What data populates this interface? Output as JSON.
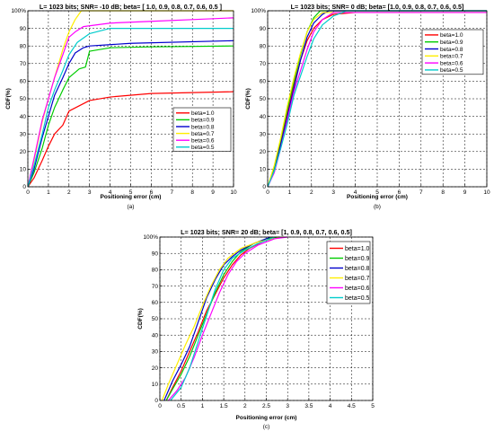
{
  "chart_data": [
    {
      "type": "line",
      "title": "L= 1023  bits;  SNR= -10 dB;  beta= [ 1.0,   0.9,   0.8,   0.7,   0.6,   0.5  ]",
      "xlabel": "Positioning error (cm)",
      "ylabel": "CDF(%)",
      "caption": "(a)",
      "xlim": [
        0,
        10
      ],
      "ylim": [
        0,
        100
      ],
      "xticks": [
        "0",
        "1",
        "2",
        "3",
        "4",
        "5",
        "6",
        "7",
        "8",
        "9",
        "10"
      ],
      "yticks": [
        "0",
        "10",
        "20",
        "30",
        "40",
        "50",
        "60",
        "70",
        "80",
        "90",
        "100%"
      ],
      "grid": true,
      "legend_position": "right-middle",
      "series": [
        {
          "name": "beta=1.0",
          "color": "#ff0000",
          "points": [
            [
              0,
              0
            ],
            [
              0.3,
              5
            ],
            [
              0.7,
              15
            ],
            [
              1.0,
              23
            ],
            [
              1.3,
              30
            ],
            [
              1.7,
              35
            ],
            [
              2.0,
              43
            ],
            [
              2.5,
              46
            ],
            [
              3,
              49
            ],
            [
              4,
              51
            ],
            [
              6,
              53
            ],
            [
              8,
              53.5
            ],
            [
              10,
              54
            ]
          ]
        },
        {
          "name": "beta=0.9",
          "color": "#00cc00",
          "points": [
            [
              0,
              0
            ],
            [
              0.3,
              8
            ],
            [
              0.7,
              22
            ],
            [
              1.0,
              35
            ],
            [
              1.3,
              45
            ],
            [
              1.7,
              55
            ],
            [
              2.0,
              62
            ],
            [
              2.5,
              67
            ],
            [
              2.8,
              68
            ],
            [
              3.0,
              77
            ],
            [
              4,
              79
            ],
            [
              6,
              79.5
            ],
            [
              10,
              80
            ]
          ]
        },
        {
          "name": "beta=0.8",
          "color": "#0000cc",
          "points": [
            [
              0,
              0
            ],
            [
              0.3,
              10
            ],
            [
              0.7,
              28
            ],
            [
              1.0,
              40
            ],
            [
              1.3,
              52
            ],
            [
              1.7,
              62
            ],
            [
              2.0,
              70
            ],
            [
              2.3,
              76
            ],
            [
              2.7,
              79
            ],
            [
              3.0,
              80
            ],
            [
              5,
              81.5
            ],
            [
              10,
              83
            ]
          ]
        },
        {
          "name": "beta=0.7",
          "color": "#ffee00",
          "points": [
            [
              0,
              0
            ],
            [
              0.3,
              15
            ],
            [
              0.7,
              37
            ],
            [
              1.0,
              50
            ],
            [
              1.3,
              62
            ],
            [
              1.7,
              78
            ],
            [
              2.0,
              88
            ],
            [
              2.3,
              95
            ],
            [
              2.6,
              100
            ],
            [
              10,
              100
            ]
          ]
        },
        {
          "name": "beta=0.6",
          "color": "#ff00ff",
          "points": [
            [
              0,
              0
            ],
            [
              0.3,
              16
            ],
            [
              0.7,
              38
            ],
            [
              1.0,
              50
            ],
            [
              1.3,
              62
            ],
            [
              1.7,
              75
            ],
            [
              2.0,
              85
            ],
            [
              2.3,
              88
            ],
            [
              2.7,
              91
            ],
            [
              4,
              93
            ],
            [
              6,
              94
            ],
            [
              8,
              95
            ],
            [
              10,
              96
            ]
          ]
        },
        {
          "name": "beta=0.5",
          "color": "#00cccc",
          "points": [
            [
              0,
              0
            ],
            [
              0.3,
              12
            ],
            [
              0.7,
              30
            ],
            [
              1.0,
              45
            ],
            [
              1.3,
              55
            ],
            [
              1.7,
              66
            ],
            [
              2.0,
              75
            ],
            [
              2.4,
              82
            ],
            [
              3.0,
              87
            ],
            [
              4,
              90
            ],
            [
              10,
              90
            ]
          ]
        }
      ]
    },
    {
      "type": "line",
      "title": "L= 1023  bits;  SNR= 0 dB;  beta= [1.0,   0.9,   0.8,   0.7,   0.6,   0.5]",
      "xlabel": "Positioning error (cm)",
      "ylabel": "CDF(%)",
      "caption": "(b)",
      "xlim": [
        0,
        10
      ],
      "ylim": [
        0,
        100
      ],
      "xticks": [
        "0",
        "1",
        "2",
        "3",
        "4",
        "5",
        "6",
        "7",
        "8",
        "9",
        "10"
      ],
      "yticks": [
        "0",
        "10",
        "20",
        "30",
        "40",
        "50",
        "60",
        "70",
        "80",
        "90",
        "100%"
      ],
      "grid": true,
      "legend_position": "top-right",
      "series": [
        {
          "name": "beta=1.0",
          "color": "#ff0000",
          "points": [
            [
              0,
              0
            ],
            [
              0.3,
              10
            ],
            [
              0.6,
              25
            ],
            [
              0.9,
              42
            ],
            [
              1.2,
              58
            ],
            [
              1.5,
              72
            ],
            [
              1.8,
              83
            ],
            [
              2.1,
              90
            ],
            [
              2.5,
              95
            ],
            [
              3,
              98
            ],
            [
              4,
              99
            ],
            [
              10,
              99
            ]
          ]
        },
        {
          "name": "beta=0.9",
          "color": "#00cc00",
          "points": [
            [
              0,
              0
            ],
            [
              0.3,
              11
            ],
            [
              0.6,
              27
            ],
            [
              0.9,
              44
            ],
            [
              1.2,
              60
            ],
            [
              1.5,
              75
            ],
            [
              1.8,
              88
            ],
            [
              2.1,
              96
            ],
            [
              2.4,
              100
            ],
            [
              10,
              100
            ]
          ]
        },
        {
          "name": "beta=0.8",
          "color": "#0000cc",
          "points": [
            [
              0,
              0
            ],
            [
              0.3,
              9
            ],
            [
              0.6,
              24
            ],
            [
              0.9,
              40
            ],
            [
              1.2,
              56
            ],
            [
              1.5,
              72
            ],
            [
              1.8,
              85
            ],
            [
              2.1,
              93
            ],
            [
              2.5,
              98
            ],
            [
              2.8,
              100
            ],
            [
              10,
              100
            ]
          ]
        },
        {
          "name": "beta=0.7",
          "color": "#ffee00",
          "points": [
            [
              0,
              0
            ],
            [
              0.3,
              12
            ],
            [
              0.6,
              28
            ],
            [
              0.9,
              46
            ],
            [
              1.2,
              62
            ],
            [
              1.5,
              76
            ],
            [
              1.8,
              88
            ],
            [
              2.1,
              95
            ],
            [
              2.5,
              99
            ],
            [
              10,
              99
            ]
          ]
        },
        {
          "name": "beta=0.6",
          "color": "#ff00ff",
          "points": [
            [
              0,
              0
            ],
            [
              0.3,
              8
            ],
            [
              0.6,
              22
            ],
            [
              0.9,
              38
            ],
            [
              1.2,
              54
            ],
            [
              1.5,
              66
            ],
            [
              1.8,
              78
            ],
            [
              2.1,
              88
            ],
            [
              2.5,
              95
            ],
            [
              3,
              99
            ],
            [
              10,
              99
            ]
          ]
        },
        {
          "name": "beta=0.5",
          "color": "#00cccc",
          "points": [
            [
              0,
              0
            ],
            [
              0.3,
              9
            ],
            [
              0.6,
              22
            ],
            [
              0.9,
              36
            ],
            [
              1.2,
              52
            ],
            [
              1.5,
              63
            ],
            [
              1.8,
              74
            ],
            [
              2.1,
              84
            ],
            [
              2.5,
              92
            ],
            [
              3,
              97
            ],
            [
              3.6,
              100
            ],
            [
              10,
              100
            ]
          ]
        }
      ]
    },
    {
      "type": "line",
      "title": "L= 1023  bits;  SNR= 20 dB;  beta= [1,   0.9,   0.8,   0.7,   0.6,   0.5]",
      "xlabel": "Positioning error (cm)",
      "ylabel": "CDF(%)",
      "caption": "(c)",
      "xlim": [
        0,
        5
      ],
      "ylim": [
        0,
        100
      ],
      "xticks": [
        "0",
        "0.5",
        "1",
        "1.5",
        "2",
        "2.5",
        "3",
        "3.5",
        "4",
        "4.5",
        "5"
      ],
      "yticks": [
        "0",
        "10",
        "20",
        "30",
        "40",
        "50",
        "60",
        "70",
        "80",
        "90",
        "100%"
      ],
      "grid": true,
      "legend_position": "top-right",
      "series": [
        {
          "name": "beta=1.0",
          "color": "#ff0000",
          "points": [
            [
              0.15,
              0
            ],
            [
              0.3,
              8
            ],
            [
              0.5,
              18
            ],
            [
              0.7,
              30
            ],
            [
              0.9,
              42
            ],
            [
              1.1,
              55
            ],
            [
              1.3,
              65
            ],
            [
              1.5,
              75
            ],
            [
              1.7,
              83
            ],
            [
              1.9,
              89
            ],
            [
              2.1,
              93
            ],
            [
              2.4,
              97
            ],
            [
              2.7,
              100
            ]
          ]
        },
        {
          "name": "beta=0.9",
          "color": "#00cc00",
          "points": [
            [
              0.15,
              0
            ],
            [
              0.3,
              7
            ],
            [
              0.5,
              16
            ],
            [
              0.7,
              27
            ],
            [
              0.9,
              40
            ],
            [
              1.1,
              53
            ],
            [
              1.3,
              66
            ],
            [
              1.5,
              77
            ],
            [
              1.7,
              85
            ],
            [
              1.9,
              91
            ],
            [
              2.2,
              96
            ],
            [
              2.5,
              99
            ],
            [
              2.8,
              100
            ]
          ]
        },
        {
          "name": "beta=0.8",
          "color": "#0000cc",
          "points": [
            [
              0.1,
              0
            ],
            [
              0.3,
              12
            ],
            [
              0.5,
              22
            ],
            [
              0.7,
              33
            ],
            [
              0.9,
              48
            ],
            [
              1.1,
              63
            ],
            [
              1.3,
              74
            ],
            [
              1.5,
              83
            ],
            [
              1.7,
              88
            ],
            [
              1.9,
              92
            ],
            [
              2.2,
              96
            ],
            [
              2.6,
              100
            ]
          ]
        },
        {
          "name": "beta=0.7",
          "color": "#ffee00",
          "points": [
            [
              0.05,
              0
            ],
            [
              0.2,
              10
            ],
            [
              0.4,
              22
            ],
            [
              0.6,
              34
            ],
            [
              0.8,
              45
            ],
            [
              1.0,
              58
            ],
            [
              1.2,
              70
            ],
            [
              1.4,
              80
            ],
            [
              1.6,
              87
            ],
            [
              1.9,
              93
            ],
            [
              2.3,
              97
            ],
            [
              2.9,
              100
            ]
          ]
        },
        {
          "name": "beta=0.6",
          "color": "#ff00ff",
          "points": [
            [
              0.2,
              0
            ],
            [
              0.4,
              6
            ],
            [
              0.6,
              14
            ],
            [
              0.8,
              26
            ],
            [
              1.0,
              40
            ],
            [
              1.2,
              53
            ],
            [
              1.4,
              66
            ],
            [
              1.6,
              77
            ],
            [
              1.8,
              85
            ],
            [
              2.0,
              90
            ],
            [
              2.3,
              95
            ],
            [
              2.7,
              99
            ],
            [
              3,
              100
            ]
          ]
        },
        {
          "name": "beta=0.5",
          "color": "#00cccc",
          "points": [
            [
              0.25,
              0
            ],
            [
              0.5,
              8
            ],
            [
              0.7,
              20
            ],
            [
              0.9,
              36
            ],
            [
              1.1,
              52
            ],
            [
              1.3,
              68
            ],
            [
              1.5,
              80
            ],
            [
              1.7,
              87
            ],
            [
              2.0,
              92
            ],
            [
              2.3,
              96
            ],
            [
              2.7,
              100
            ]
          ]
        }
      ]
    }
  ]
}
